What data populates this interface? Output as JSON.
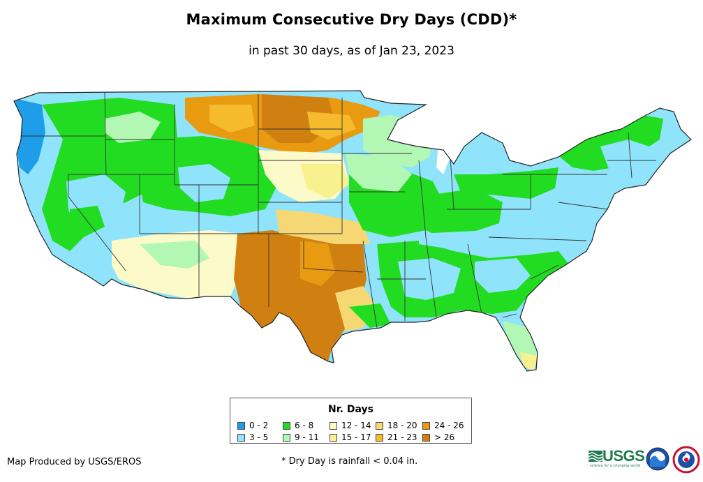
{
  "title": "Maximum Consecutive Dry Days (CDD)*",
  "subtitle": "in past 30 days, as of Jan 23, 2023",
  "legend": {
    "title": "Nr. Days",
    "items": [
      {
        "label": "0 - 2",
        "color": "#1e9ee8"
      },
      {
        "label": "3 - 5",
        "color": "#8fe3fa"
      },
      {
        "label": "6 - 8",
        "color": "#22dc22"
      },
      {
        "label": "9 - 11",
        "color": "#b2f7b4"
      },
      {
        "label": "12 - 14",
        "color": "#fcfac8"
      },
      {
        "label": "15 - 17",
        "color": "#f9f08e"
      },
      {
        "label": "18 - 20",
        "color": "#f5d874"
      },
      {
        "label": "21 - 23",
        "color": "#f5bb2d"
      },
      {
        "label": "24 - 26",
        "color": "#e89a10"
      },
      {
        "label": "> 26",
        "color": "#d08010"
      }
    ]
  },
  "credit": "Map Produced by USGS/EROS",
  "footnote": "* Dry Day is rainfall < 0.04 in.",
  "logos": {
    "usgs": "USGS",
    "usgs_tagline": "science for a changing world",
    "noaa": "NOAA"
  }
}
